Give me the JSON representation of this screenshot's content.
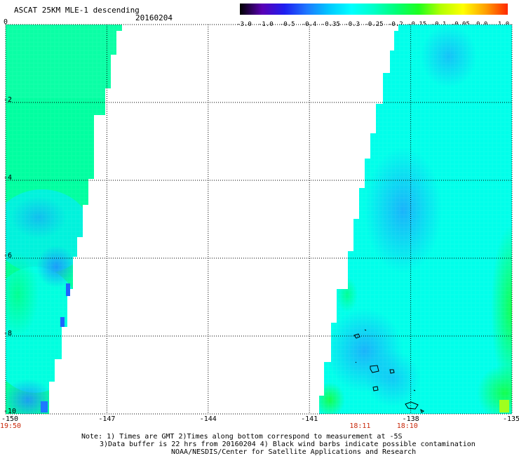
{
  "header": {
    "title": "ASCAT 25KM MLE-1 descending",
    "date": "20160204"
  },
  "colorbar": {
    "labels": [
      "-3.0",
      "-1.0",
      "-0.5",
      "-0.4",
      "-0.35",
      "-0.3",
      "-0.25",
      "-0.2",
      "-0.15",
      "-0.1",
      "-0.05",
      "0.0",
      "1.0"
    ],
    "colors": [
      "#000000",
      "#5a00b4",
      "#1e1ef0",
      "#1e78ff",
      "#00c8ff",
      "#00ffff",
      "#00ffc8",
      "#00ff78",
      "#1eff1e",
      "#b4ff00",
      "#ffff00",
      "#ffa000",
      "#ff2800"
    ]
  },
  "axes": {
    "lon_labels": [
      "-150",
      "-147",
      "-144",
      "-141",
      "-138",
      "-135"
    ],
    "lat_labels": [
      "0",
      "-2",
      "-4",
      "-6",
      "-8",
      "-10"
    ],
    "lon_range": [
      -150,
      -135
    ],
    "lat_range": [
      0,
      -10
    ]
  },
  "times": [
    {
      "label": "19:50",
      "lon": -150
    },
    {
      "label": "18:11",
      "lon": -139.5
    },
    {
      "label": "18:10",
      "lon": -138.1
    }
  ],
  "notes": [
    "Note: 1) Times are GMT 2)Times along bottom correspond to measurement at -5S",
    "3)Data buffer is 22 hrs from 20160204 4) Black wind barbs indicate possible contamination",
    "NOAA/NESDIS/Center for Satellite Applications and Research"
  ],
  "colors": {
    "west_swath": "#00ff9c",
    "east_swath": "#00ffec",
    "low_pocket": "#14aaff",
    "eastern_edge": "#1eff32",
    "time_label": "#c8280a"
  }
}
